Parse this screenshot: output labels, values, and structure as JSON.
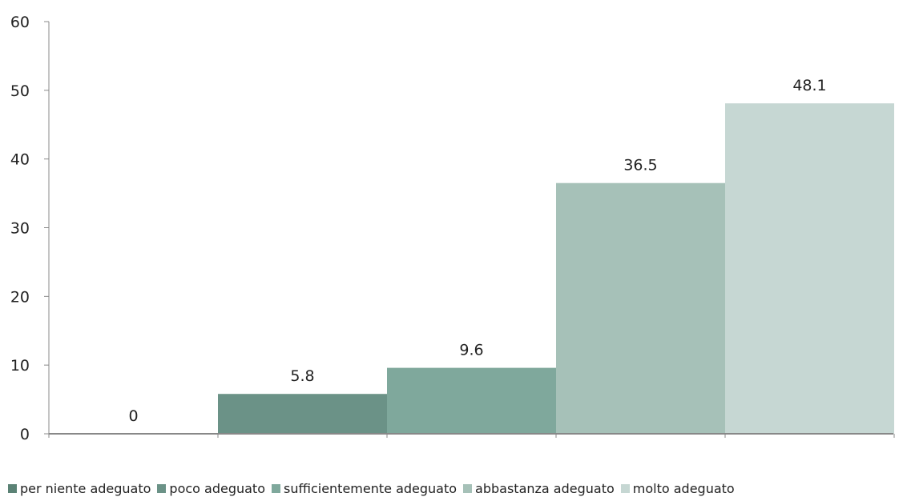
{
  "chart_data": {
    "type": "bar",
    "categories": [
      "per niente adeguato",
      "poco adeguato",
      "sufficientemente adeguato",
      "abbastanza adeguato",
      "molto adeguato"
    ],
    "values": [
      0,
      5.8,
      9.6,
      36.5,
      48.1
    ],
    "value_labels": [
      "0",
      "5.8",
      "9.6",
      "36.5",
      "48.1"
    ],
    "colors": [
      "#5b8275",
      "#6b9287",
      "#7fa89c",
      "#a6c1b8",
      "#c6d7d3"
    ],
    "ylim": [
      0,
      60
    ],
    "yticks": [
      "0",
      "10",
      "20",
      "30",
      "40",
      "50",
      "60"
    ],
    "legend": [
      "per niente adeguato",
      "poco adeguato",
      "sufficientemente adeguato",
      "abbastanza adeguato",
      "molto adeguato"
    ],
    "legend_position": "bottom",
    "grid": false,
    "axis_color": "#888888",
    "title": "",
    "xlabel": "",
    "ylabel": ""
  }
}
